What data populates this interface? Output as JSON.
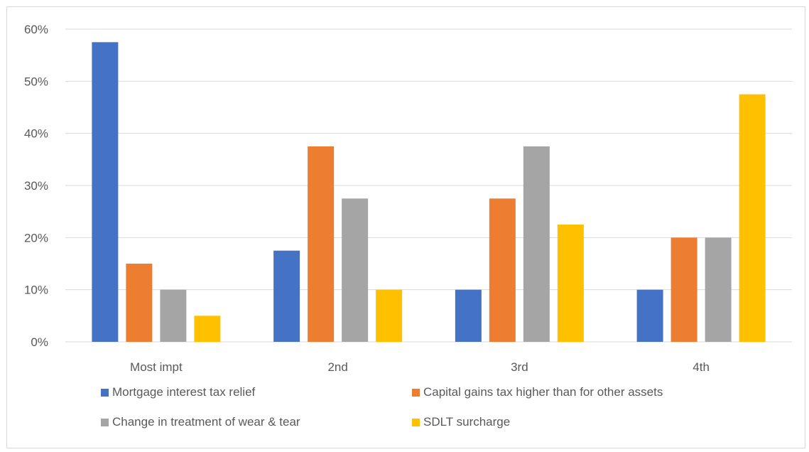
{
  "chart_data": {
    "type": "bar",
    "categories": [
      "Most impt",
      "2nd",
      "3rd",
      "4th"
    ],
    "series": [
      {
        "name": "Mortgage interest tax relief",
        "color": "#4472C4",
        "values": [
          0.575,
          0.175,
          0.1,
          0.1
        ]
      },
      {
        "name": "Capital gains tax higher than for other assets",
        "color": "#ED7D31",
        "values": [
          0.15,
          0.375,
          0.275,
          0.2
        ]
      },
      {
        "name": "Change in treatment of wear & tear",
        "color": "#A5A5A5",
        "values": [
          0.1,
          0.275,
          0.375,
          0.2
        ]
      },
      {
        "name": "SDLT surcharge",
        "color": "#FFC000",
        "values": [
          0.05,
          0.1,
          0.225,
          0.475
        ]
      }
    ],
    "y_ticks": [
      "0%",
      "10%",
      "20%",
      "30%",
      "40%",
      "50%",
      "60%"
    ],
    "ylim": [
      0,
      0.6
    ],
    "grid": true,
    "legend_position": "bottom"
  }
}
